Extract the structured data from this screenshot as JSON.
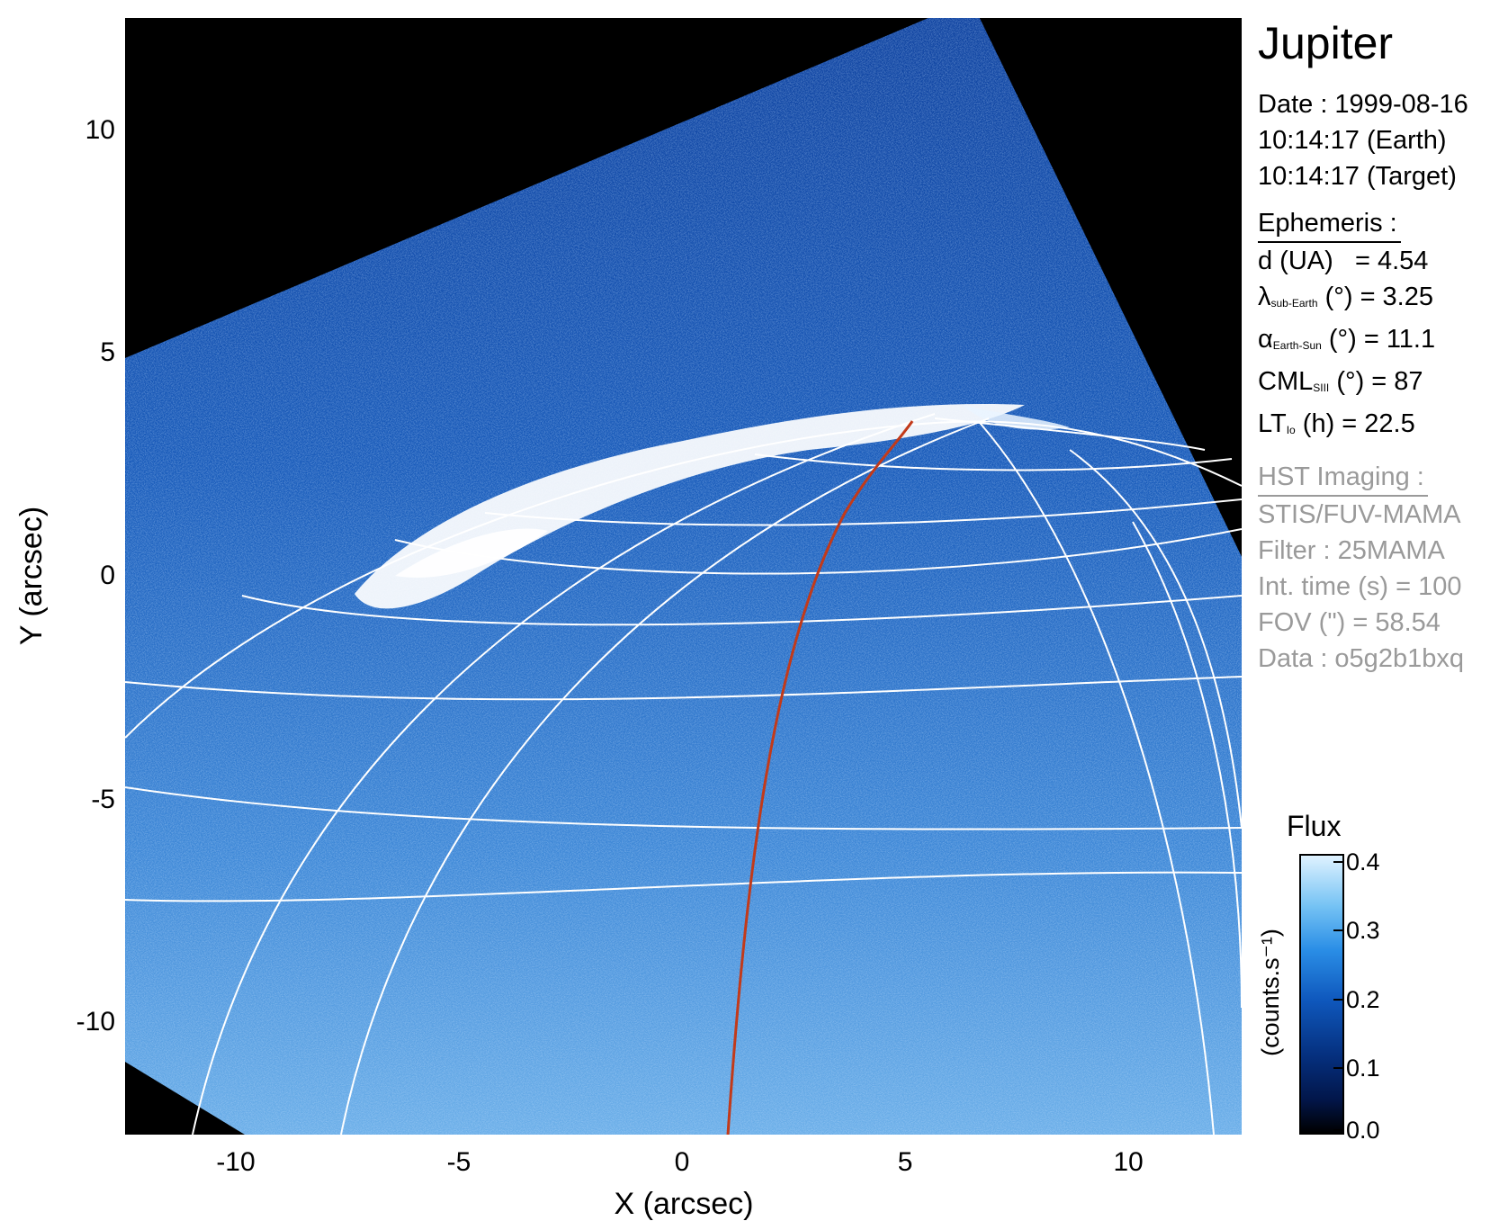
{
  "figure": {
    "x_axis_label": "X (arcsec)",
    "y_axis_label": "Y (arcsec)",
    "x_ticks": [
      "-10",
      "-5",
      "0",
      "5",
      "10"
    ],
    "y_ticks": [
      "10",
      "5",
      "0",
      "-5",
      "-10"
    ]
  },
  "info": {
    "target": "Jupiter",
    "date_line": "Date : 1999-08-16",
    "time_earth": "10:14:17 (Earth)",
    "time_target": "10:14:17 (Target)",
    "ephemeris_header": "Ephemeris :",
    "ephemeris": {
      "d_label": "d (UA)",
      "d_value": "= 4.54",
      "lambda_symbol": "λ",
      "lambda_sub": "sub-Earth",
      "lambda_value": "(°) = 3.25",
      "alpha_symbol": "α",
      "alpha_sub": "Earth-Sun",
      "alpha_value": "(°) = 11.1",
      "cml_symbol": "CML",
      "cml_sub": "SIII",
      "cml_value": "(°) = 87",
      "lt_symbol": "LT",
      "lt_sub": "Io",
      "lt_value": "(h) = 22.5"
    },
    "imaging_header": "HST Imaging :",
    "instrument": "STIS/FUV-MAMA",
    "filter": "Filter : 25MAMA",
    "int_time": "Int. time (s) = 100",
    "fov": "FOV (\") = 58.54",
    "dataset": "Data : o5g2b1bxq"
  },
  "colorbar": {
    "title": "Flux",
    "unit_label": "(counts.s⁻¹)",
    "ticks": [
      "0.4",
      "0.3",
      "0.2",
      "0.1",
      "0.0"
    ],
    "colormap": [
      "#000000",
      "#05307f",
      "#0f58bd",
      "#2a8ee6",
      "#dff2ff"
    ]
  },
  "colors": {
    "grid": "#ffffff",
    "meridian_highlight": "#c23a1a",
    "background": "#000000"
  }
}
